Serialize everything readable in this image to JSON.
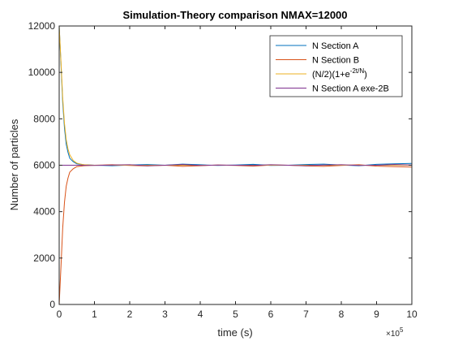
{
  "chart_data": {
    "type": "line",
    "title": "Simulation-Theory comparison NMAX=12000",
    "xlabel": "time (s)",
    "ylabel": "Number of particles",
    "x_exponent_label": "×10",
    "x_exponent_power": "5",
    "xlim": [
      0,
      10
    ],
    "ylim": [
      0,
      12000
    ],
    "x_ticks": [
      0,
      1,
      2,
      3,
      4,
      5,
      6,
      7,
      8,
      9,
      10
    ],
    "y_ticks": [
      0,
      2000,
      4000,
      6000,
      8000,
      10000,
      12000
    ],
    "x_tick_labels": [
      "0",
      "1",
      "2",
      "3",
      "4",
      "5",
      "6",
      "7",
      "8",
      "9",
      "10"
    ],
    "y_tick_labels": [
      "0",
      "2000",
      "4000",
      "6000",
      "8000",
      "10000",
      "12000"
    ],
    "grid": false,
    "legend_position": "top-right",
    "series": [
      {
        "name": "N Section A",
        "color": "#0072BD",
        "x": [
          0,
          0.05,
          0.1,
          0.15,
          0.2,
          0.25,
          0.3,
          0.4,
          0.5,
          0.7,
          1,
          1.5,
          2,
          2.5,
          3,
          3.5,
          4,
          4.5,
          5,
          5.5,
          6,
          6.5,
          7,
          7.5,
          8,
          8.5,
          9,
          9.5,
          10
        ],
        "y": [
          12000,
          10400,
          8700,
          7600,
          6900,
          6550,
          6300,
          6150,
          6060,
          6020,
          6000,
          5980,
          6010,
          6030,
          6000,
          6050,
          6020,
          5990,
          6010,
          6040,
          5990,
          6000,
          6030,
          6050,
          6010,
          5980,
          6040,
          6060,
          6080
        ]
      },
      {
        "name": "N Section B",
        "color": "#D95319",
        "x": [
          0,
          0.05,
          0.1,
          0.15,
          0.2,
          0.25,
          0.3,
          0.4,
          0.5,
          0.7,
          1,
          1.5,
          2,
          2.5,
          3,
          3.5,
          4,
          4.5,
          5,
          5.5,
          6,
          6.5,
          7,
          7.5,
          8,
          8.5,
          9,
          9.5,
          10
        ],
        "y": [
          0,
          1600,
          3300,
          4400,
          5100,
          5450,
          5700,
          5850,
          5940,
          5980,
          6000,
          6020,
          5990,
          5970,
          6000,
          5950,
          5980,
          6010,
          5990,
          5960,
          6010,
          6000,
          5970,
          5950,
          5990,
          6020,
          5960,
          5940,
          5920
        ]
      },
      {
        "name": "(N/2)(1+e^{-2t/N})",
        "label_base": "(N/2)(1+e",
        "label_sup": "-2t/N",
        "label_end": ")",
        "color": "#EDB120",
        "x": [
          0,
          0.05,
          0.1,
          0.15,
          0.2,
          0.25,
          0.3,
          0.4,
          0.5,
          0.7,
          1,
          2,
          3,
          4,
          5,
          6,
          7,
          8,
          9,
          10
        ],
        "y": [
          12000,
          10500,
          8900,
          7800,
          7100,
          6700,
          6450,
          6200,
          6090,
          6020,
          6000,
          6000,
          6000,
          6000,
          6000,
          6000,
          6000,
          6000,
          6000,
          6000
        ]
      },
      {
        "name": "N Section A exe-2B",
        "color": "#7E2F8E",
        "x": [
          0,
          0.5,
          1,
          1.5,
          2,
          2.5,
          3,
          3.5,
          4,
          4.5,
          5,
          5.5,
          6,
          6.5,
          7,
          7.5,
          8,
          8.5,
          9,
          9.5,
          10
        ],
        "y": [
          6000,
          6000,
          5990,
          6010,
          6020,
          5980,
          6000,
          6030,
          5990,
          6010,
          6000,
          5990,
          6020,
          6000,
          5980,
          6010,
          6020,
          5990,
          6000,
          6030,
          6010
        ]
      }
    ]
  }
}
